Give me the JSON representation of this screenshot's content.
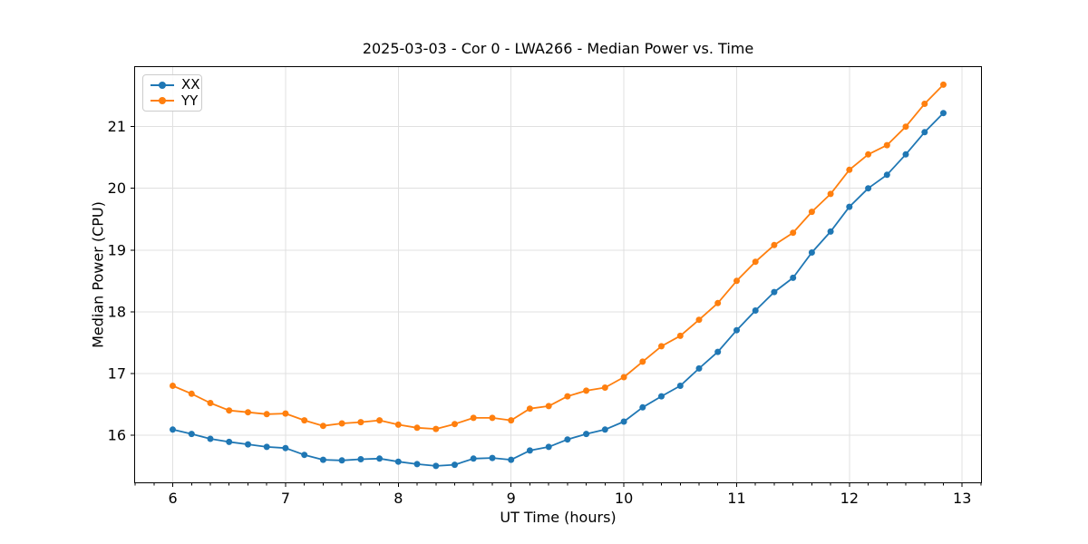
{
  "chart_data": {
    "type": "line",
    "title": "2025-03-03 - Cor 0 - LWA266 - Median Power vs. Time",
    "xlabel": "UT Time (hours)",
    "ylabel": "Median Power (CPU)",
    "xlim": [
      5.658,
      13.175
    ],
    "ylim": [
      15.22,
      21.98
    ],
    "x_ticks": [
      6,
      7,
      8,
      9,
      10,
      11,
      12,
      13
    ],
    "y_ticks": [
      16,
      17,
      18,
      19,
      20,
      21
    ],
    "x_minor_ticks_per_unit": 6,
    "grid": "major",
    "grid_color": "#e0e0e0",
    "spine_color": "#000000",
    "legend_position": "upper-left",
    "x": [
      6,
      6.1667,
      6.3333,
      6.5,
      6.6667,
      6.8333,
      7,
      7.1667,
      7.3333,
      7.5,
      7.6667,
      7.8333,
      8,
      8.1667,
      8.3333,
      8.5,
      8.6667,
      8.8333,
      9,
      9.1667,
      9.3333,
      9.5,
      9.6667,
      9.8333,
      10,
      10.1667,
      10.3333,
      10.5,
      10.6667,
      10.8333,
      11,
      11.1667,
      11.3333,
      11.5,
      11.6667,
      11.8333,
      12,
      12.1667,
      12.3333,
      12.5,
      12.6667,
      12.8333
    ],
    "series": [
      {
        "name": "XX",
        "color": "#1f77b4",
        "marker": "circle",
        "values": [
          16.09,
          16.02,
          15.94,
          15.89,
          15.85,
          15.81,
          15.79,
          15.68,
          15.6,
          15.59,
          15.61,
          15.62,
          15.57,
          15.53,
          15.5,
          15.52,
          15.62,
          15.63,
          15.6,
          15.75,
          15.81,
          15.93,
          16.02,
          16.09,
          16.22,
          16.45,
          16.63,
          16.8,
          17.08,
          17.35,
          17.7,
          18.02,
          18.32,
          18.55,
          18.96,
          19.3,
          19.7,
          20.0,
          20.22,
          20.55,
          20.91,
          21.22
        ]
      },
      {
        "name": "YY",
        "color": "#ff7f0e",
        "marker": "circle",
        "values": [
          16.8,
          16.67,
          16.52,
          16.4,
          16.37,
          16.34,
          16.35,
          16.24,
          16.15,
          16.19,
          16.21,
          16.24,
          16.17,
          16.12,
          16.1,
          16.18,
          16.28,
          16.28,
          16.24,
          16.43,
          16.47,
          16.63,
          16.72,
          16.77,
          16.94,
          17.19,
          17.44,
          17.61,
          17.87,
          18.14,
          18.5,
          18.81,
          19.08,
          19.28,
          19.62,
          19.91,
          20.3,
          20.55,
          20.7,
          21.0,
          21.37,
          21.68
        ]
      }
    ]
  }
}
